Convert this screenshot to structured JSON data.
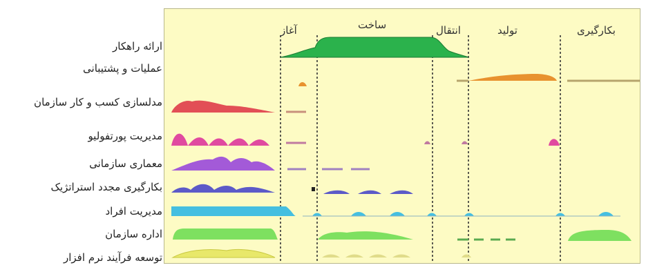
{
  "phases": [
    {
      "id": "inception",
      "label": "آغاز"
    },
    {
      "id": "construction",
      "label": "ساخت"
    },
    {
      "id": "transition",
      "label": "انتقال"
    },
    {
      "id": "production",
      "label": "تولید"
    },
    {
      "id": "retirement",
      "label": "بکارگیری"
    }
  ],
  "disciplines": [
    {
      "label": "ارائه راهکار",
      "color": "#2bb24c"
    },
    {
      "label": "عملیات و پشتیبانی",
      "color": "#e8922f"
    },
    {
      "label": "مدلسازی کسب و کار سازمان",
      "color": "#e24f56"
    },
    {
      "label": "مدیریت پورتفولیو",
      "color": "#e04aa0"
    },
    {
      "label": "معماری سازمانی",
      "color": "#a35ad8"
    },
    {
      "label": "بکارگیری مجدد استراتژیک",
      "color": "#5c5ac8"
    },
    {
      "label": "مدیریت افراد",
      "color": "#45bfe0"
    },
    {
      "label": "اداره سازمان",
      "color": "#7ee060"
    },
    {
      "label": "توسعه فرآیند نرم افزار",
      "color": "#e8e86a"
    }
  ],
  "colors": {
    "background": "#fdfbc4",
    "border": "#b8b78c",
    "divider": "#333333"
  }
}
